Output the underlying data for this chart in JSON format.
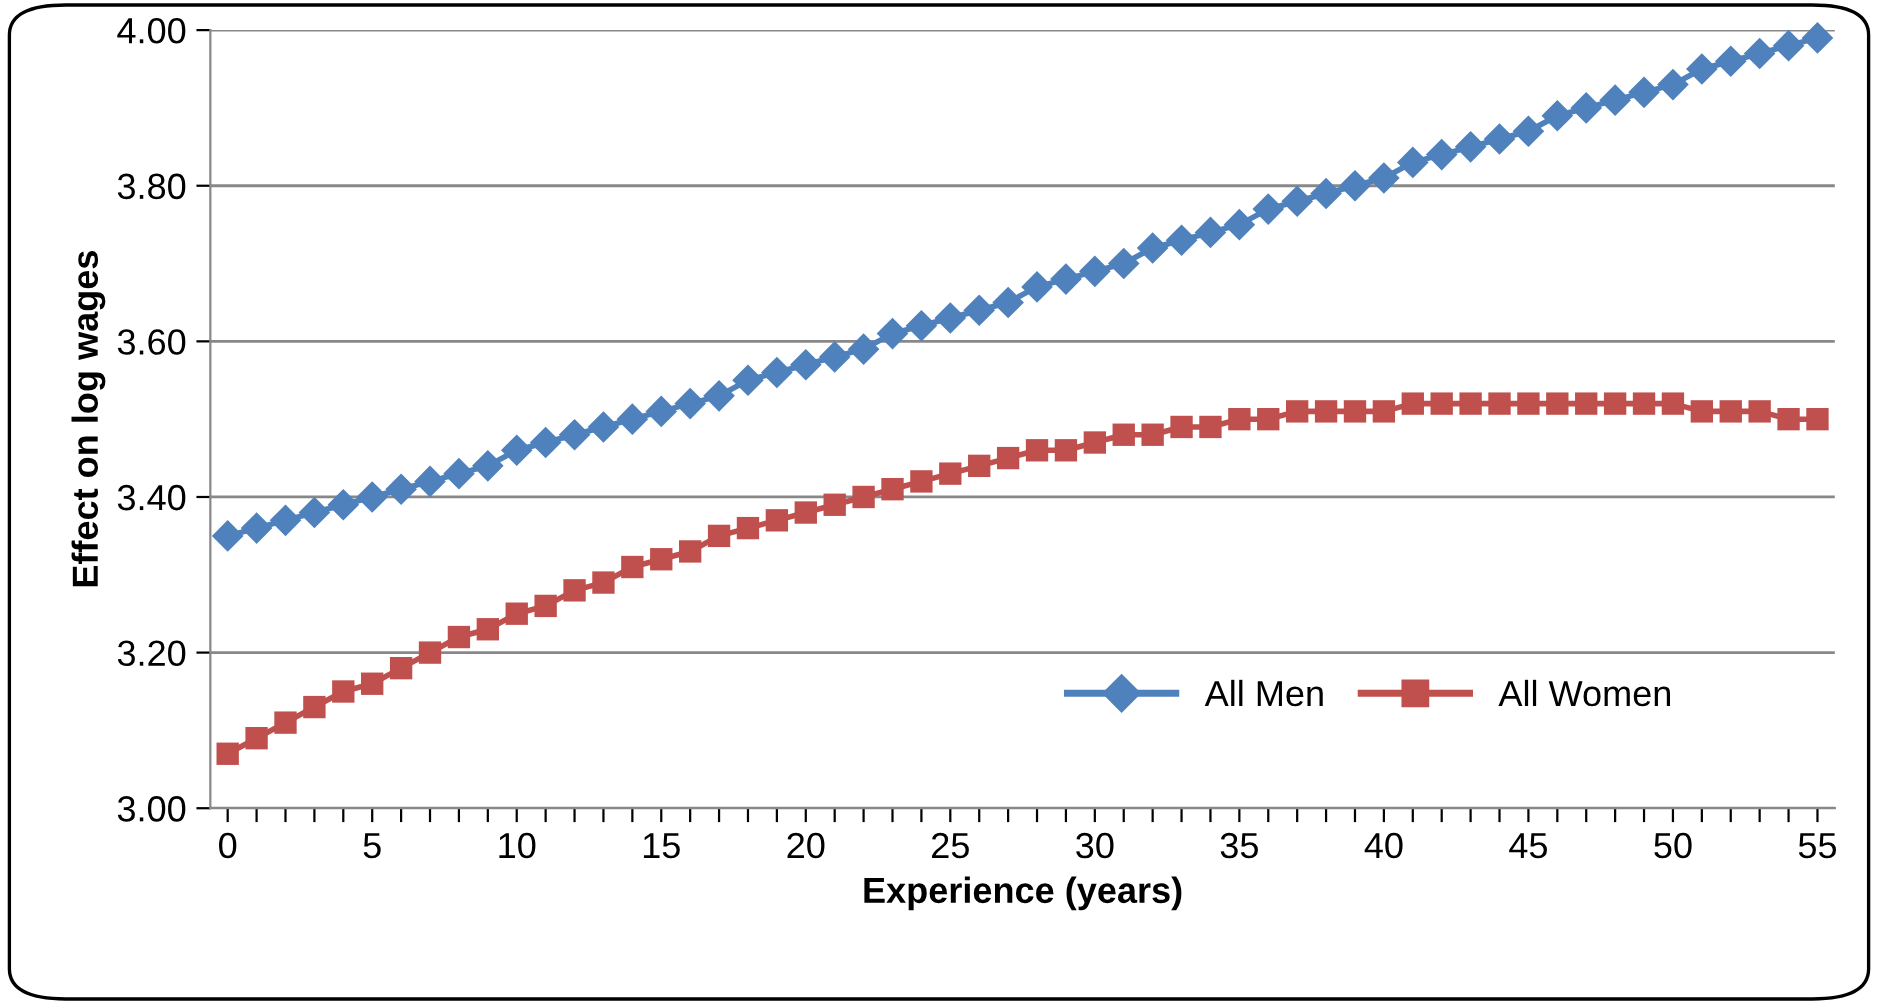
{
  "chart_data": {
    "type": "line",
    "xlabel": "Experience (years)",
    "ylabel": "Effect on log wages",
    "x": [
      0,
      1,
      2,
      3,
      4,
      5,
      6,
      7,
      8,
      9,
      10,
      11,
      12,
      13,
      14,
      15,
      16,
      17,
      18,
      19,
      20,
      21,
      22,
      23,
      24,
      25,
      26,
      27,
      28,
      29,
      30,
      31,
      32,
      33,
      34,
      35,
      36,
      37,
      38,
      39,
      40,
      41,
      42,
      43,
      44,
      45,
      46,
      47,
      48,
      49,
      50,
      51,
      52,
      53,
      54,
      55
    ],
    "series": [
      {
        "name": "All Men",
        "color": "#4f81bd",
        "marker": "diamond",
        "values": [
          3.35,
          3.36,
          3.37,
          3.38,
          3.39,
          3.4,
          3.41,
          3.42,
          3.43,
          3.44,
          3.46,
          3.47,
          3.48,
          3.49,
          3.5,
          3.51,
          3.52,
          3.53,
          3.55,
          3.56,
          3.57,
          3.58,
          3.59,
          3.61,
          3.62,
          3.63,
          3.64,
          3.65,
          3.67,
          3.68,
          3.69,
          3.7,
          3.72,
          3.73,
          3.74,
          3.75,
          3.77,
          3.78,
          3.79,
          3.8,
          3.81,
          3.83,
          3.84,
          3.85,
          3.86,
          3.87,
          3.89,
          3.9,
          3.91,
          3.92,
          3.93,
          3.95,
          3.96,
          3.97,
          3.98,
          3.99
        ]
      },
      {
        "name": "All Women",
        "color": "#c0504d",
        "marker": "square",
        "values": [
          3.07,
          3.09,
          3.11,
          3.13,
          3.15,
          3.16,
          3.18,
          3.2,
          3.22,
          3.23,
          3.25,
          3.26,
          3.28,
          3.29,
          3.31,
          3.32,
          3.33,
          3.35,
          3.36,
          3.37,
          3.38,
          3.39,
          3.4,
          3.41,
          3.42,
          3.43,
          3.44,
          3.45,
          3.46,
          3.46,
          3.47,
          3.48,
          3.48,
          3.49,
          3.49,
          3.5,
          3.5,
          3.51,
          3.51,
          3.51,
          3.51,
          3.52,
          3.52,
          3.52,
          3.52,
          3.52,
          3.52,
          3.52,
          3.52,
          3.52,
          3.52,
          3.51,
          3.51,
          3.51,
          3.5,
          3.5
        ]
      }
    ],
    "xlim": [
      -0.6,
      55.6
    ],
    "xticks": [
      0,
      {
        "value": 1,
        "label": null
      },
      {
        "value": 2,
        "label": null
      },
      {
        "value": 3,
        "label": null
      },
      {
        "value": 4,
        "label": null
      },
      5,
      {
        "value": 6,
        "label": null
      },
      {
        "value": 7,
        "label": null
      },
      {
        "value": 8,
        "label": null
      },
      {
        "value": 9,
        "label": null
      },
      10,
      {
        "value": 11,
        "label": null
      },
      {
        "value": 12,
        "label": null
      },
      {
        "value": 13,
        "label": null
      },
      {
        "value": 14,
        "label": null
      },
      15,
      {
        "value": 16,
        "label": null
      },
      {
        "value": 17,
        "label": null
      },
      {
        "value": 18,
        "label": null
      },
      {
        "value": 19,
        "label": null
      },
      20,
      {
        "value": 21,
        "label": null
      },
      {
        "value": 22,
        "label": null
      },
      {
        "value": 23,
        "label": null
      },
      {
        "value": 24,
        "label": null
      },
      25,
      {
        "value": 26,
        "label": null
      },
      {
        "value": 27,
        "label": null
      },
      {
        "value": 28,
        "label": null
      },
      {
        "value": 29,
        "label": null
      },
      30,
      {
        "value": 31,
        "label": null
      },
      {
        "value": 32,
        "label": null
      },
      {
        "value": 33,
        "label": null
      },
      {
        "value": 34,
        "label": null
      },
      35,
      {
        "value": 36,
        "label": null
      },
      {
        "value": 37,
        "label": null
      },
      {
        "value": 38,
        "label": null
      },
      {
        "value": 39,
        "label": null
      },
      40,
      {
        "value": 41,
        "label": null
      },
      {
        "value": 42,
        "label": null
      },
      {
        "value": 43,
        "label": null
      },
      {
        "value": 44,
        "label": null
      },
      45,
      {
        "value": 46,
        "label": null
      },
      {
        "value": 47,
        "label": null
      },
      {
        "value": 48,
        "label": null
      },
      {
        "value": 49,
        "label": null
      },
      50,
      {
        "value": 51,
        "label": null
      },
      {
        "value": 52,
        "label": null
      },
      {
        "value": 53,
        "label": null
      },
      {
        "value": 54,
        "label": null
      },
      55
    ],
    "ylim": [
      3.0,
      4.0
    ],
    "yticks": [
      {
        "value": 3.0,
        "label": "3.00"
      },
      {
        "value": 3.2,
        "label": "3.20"
      },
      {
        "value": 3.4,
        "label": "3.40"
      },
      {
        "value": 3.6,
        "label": "3.60"
      },
      {
        "value": 3.8,
        "label": "3.80"
      },
      {
        "value": 4.0,
        "label": "4.00"
      }
    ],
    "grid": "y",
    "legend": "bottom right",
    "line_style": "solid"
  }
}
